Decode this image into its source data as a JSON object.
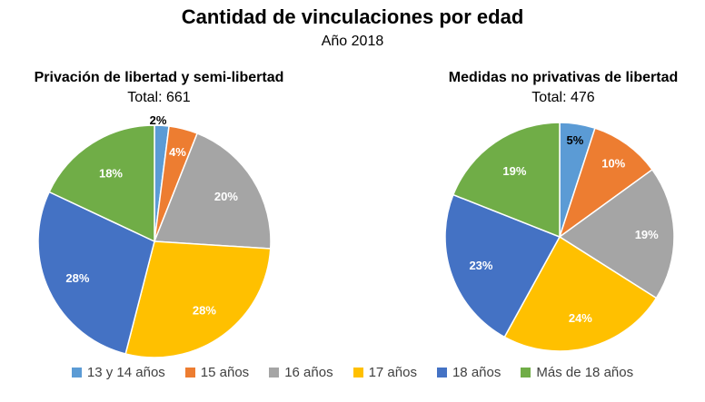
{
  "title": "Cantidad de vinculaciones por edad",
  "subtitle": "Año 2018",
  "chart_data": [
    {
      "type": "pie",
      "title": "Privación de libertad y semi-libertad",
      "total_label": "Total: 661",
      "categories": [
        "13 y 14 años",
        "15 años",
        "16 años",
        "17 años",
        "18 años",
        "Más de 18 años"
      ],
      "values": [
        2,
        4,
        20,
        28,
        28,
        18
      ],
      "value_labels": [
        "2%",
        "4%",
        "20%",
        "28%",
        "28%",
        "18%"
      ]
    },
    {
      "type": "pie",
      "title": "Medidas no privativas de libertad",
      "total_label": "Total: 476",
      "categories": [
        "13 y 14 años",
        "15 años",
        "16 años",
        "17 años",
        "18 años",
        "Más de 18 años"
      ],
      "values": [
        5,
        10,
        19,
        24,
        23,
        19
      ],
      "value_labels": [
        "5%",
        "10%",
        "19%",
        "24%",
        "23%",
        "19%"
      ]
    }
  ],
  "legend": [
    {
      "label": "13 y 14 años",
      "color": "#5B9BD5"
    },
    {
      "label": "15 años",
      "color": "#ED7D31"
    },
    {
      "label": "16 años",
      "color": "#A5A5A5"
    },
    {
      "label": "17 años",
      "color": "#FFC000"
    },
    {
      "label": "18 años",
      "color": "#4472C4"
    },
    {
      "label": "Más de 18 años",
      "color": "#70AD47"
    }
  ]
}
